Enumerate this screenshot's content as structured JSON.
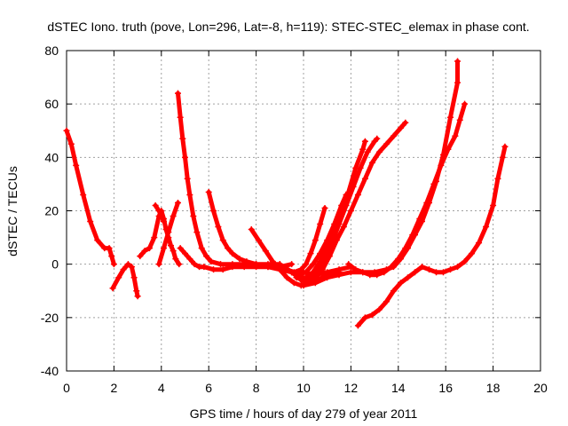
{
  "chart_data": {
    "type": "scatter",
    "title": "dSTEC Iono. truth (pove, Lon=296, Lat=-8, h=119): STEC-STEC_elemax in phase cont.",
    "xlabel": "GPS time / hours of day 279 of year 2011",
    "ylabel": "dSTEC  / TECUs",
    "xlim": [
      0,
      20
    ],
    "ylim": [
      -40,
      80
    ],
    "xticks": [
      "0",
      "2",
      "4",
      "6",
      "8",
      "10",
      "12",
      "14",
      "16",
      "18",
      "20"
    ],
    "yticks": [
      "-40",
      "-20",
      "0",
      "20",
      "40",
      "60",
      "80"
    ],
    "grid": true,
    "marker": "+",
    "color": "#ff0000",
    "series": [
      {
        "points": [
          [
            0.0,
            50
          ],
          [
            0.2,
            45
          ],
          [
            0.4,
            37
          ],
          [
            0.7,
            26
          ],
          [
            1.0,
            16
          ],
          [
            1.3,
            9
          ],
          [
            1.6,
            6
          ],
          [
            1.8,
            6
          ],
          [
            1.9,
            3
          ],
          [
            2.0,
            0
          ]
        ]
      },
      {
        "points": [
          [
            1.95,
            -9
          ],
          [
            2.2,
            -5
          ],
          [
            2.4,
            -2
          ],
          [
            2.6,
            0
          ],
          [
            2.75,
            -1
          ],
          [
            2.85,
            -5
          ],
          [
            2.95,
            -10
          ],
          [
            3.0,
            -12
          ]
        ]
      },
      {
        "points": [
          [
            3.1,
            3
          ],
          [
            3.3,
            5
          ],
          [
            3.5,
            6
          ],
          [
            3.7,
            10
          ],
          [
            3.9,
            18
          ],
          [
            4.0,
            20
          ],
          [
            4.1,
            17
          ],
          [
            4.2,
            13
          ],
          [
            4.3,
            10
          ],
          [
            4.4,
            7
          ],
          [
            4.5,
            5
          ],
          [
            4.6,
            2
          ],
          [
            4.75,
            0
          ]
        ]
      },
      {
        "points": [
          [
            3.9,
            0
          ],
          [
            4.1,
            6
          ],
          [
            4.3,
            12
          ],
          [
            4.5,
            18
          ],
          [
            4.7,
            23
          ]
        ]
      },
      {
        "points": [
          [
            3.75,
            22
          ],
          [
            3.9,
            20
          ],
          [
            4.0,
            18
          ],
          [
            4.1,
            16
          ]
        ]
      },
      {
        "points": [
          [
            4.7,
            64
          ],
          [
            4.8,
            55
          ],
          [
            4.9,
            47
          ],
          [
            5.0,
            40
          ],
          [
            5.1,
            32
          ],
          [
            5.2,
            26
          ],
          [
            5.35,
            18
          ],
          [
            5.5,
            12
          ],
          [
            5.7,
            6
          ],
          [
            5.9,
            3
          ],
          [
            6.1,
            1
          ],
          [
            6.5,
            0
          ],
          [
            7.0,
            0
          ],
          [
            7.5,
            0
          ],
          [
            8.0,
            0
          ],
          [
            8.5,
            0
          ],
          [
            9.0,
            0
          ]
        ]
      },
      {
        "points": [
          [
            4.8,
            6
          ],
          [
            5.0,
            4
          ],
          [
            5.2,
            2
          ],
          [
            5.4,
            0
          ],
          [
            5.6,
            -1
          ],
          [
            5.8,
            -1
          ],
          [
            6.2,
            -2
          ],
          [
            6.6,
            -2
          ],
          [
            7.0,
            -1
          ],
          [
            7.5,
            -1
          ],
          [
            8.0,
            -1
          ],
          [
            8.5,
            -1
          ],
          [
            9.0,
            -1
          ],
          [
            9.5,
            0
          ]
        ]
      },
      {
        "points": [
          [
            6.0,
            27
          ],
          [
            6.2,
            20
          ],
          [
            6.4,
            14
          ],
          [
            6.6,
            9
          ],
          [
            6.8,
            6
          ],
          [
            7.0,
            4
          ],
          [
            7.3,
            2
          ],
          [
            7.6,
            1
          ],
          [
            8.0,
            0
          ],
          [
            8.5,
            -1
          ],
          [
            9.0,
            -2
          ],
          [
            9.5,
            -3
          ],
          [
            10.0,
            -3
          ],
          [
            10.5,
            -4
          ],
          [
            11.0,
            -3
          ],
          [
            11.5,
            -2
          ],
          [
            12.0,
            -1
          ]
        ]
      },
      {
        "points": [
          [
            7.8,
            13
          ],
          [
            8.1,
            9
          ],
          [
            8.4,
            5
          ],
          [
            8.7,
            1
          ],
          [
            9.0,
            -2
          ],
          [
            9.3,
            -5
          ],
          [
            9.6,
            -7
          ],
          [
            9.9,
            -8
          ],
          [
            10.2,
            -7
          ],
          [
            10.5,
            -6
          ],
          [
            10.8,
            -5
          ],
          [
            11.1,
            -4
          ],
          [
            11.5,
            -3
          ]
        ]
      },
      {
        "points": [
          [
            9.0,
            0
          ],
          [
            9.3,
            -2
          ],
          [
            9.6,
            -3
          ],
          [
            9.9,
            -2
          ],
          [
            10.1,
            0
          ],
          [
            10.3,
            4
          ],
          [
            10.5,
            9
          ],
          [
            10.7,
            15
          ],
          [
            10.9,
            21
          ]
        ]
      },
      {
        "points": [
          [
            9.2,
            -1
          ],
          [
            9.5,
            -3
          ],
          [
            9.8,
            -4
          ],
          [
            10.1,
            -3
          ],
          [
            10.4,
            0
          ],
          [
            10.7,
            4
          ],
          [
            11.0,
            9
          ],
          [
            11.3,
            15
          ],
          [
            11.6,
            22
          ],
          [
            11.8,
            26
          ]
        ]
      },
      {
        "points": [
          [
            9.5,
            -3
          ],
          [
            9.8,
            -5
          ],
          [
            10.1,
            -5
          ],
          [
            10.4,
            -3
          ],
          [
            10.7,
            1
          ],
          [
            11.0,
            6
          ],
          [
            11.3,
            12
          ],
          [
            11.6,
            19
          ],
          [
            11.9,
            27
          ],
          [
            12.2,
            36
          ],
          [
            12.5,
            43
          ],
          [
            12.6,
            46
          ]
        ]
      },
      {
        "points": [
          [
            9.7,
            -5
          ],
          [
            10.0,
            -6
          ],
          [
            10.3,
            -5
          ],
          [
            10.6,
            -2
          ],
          [
            10.9,
            2
          ],
          [
            11.2,
            8
          ],
          [
            11.5,
            15
          ],
          [
            11.8,
            22
          ],
          [
            12.1,
            29
          ],
          [
            12.4,
            36
          ],
          [
            12.7,
            42
          ],
          [
            13.0,
            46
          ],
          [
            13.1,
            47
          ]
        ]
      },
      {
        "points": [
          [
            9.9,
            -6
          ],
          [
            10.2,
            -7
          ],
          [
            10.5,
            -5
          ],
          [
            10.8,
            -2
          ],
          [
            11.1,
            3
          ],
          [
            11.4,
            9
          ],
          [
            11.7,
            14
          ],
          [
            12.0,
            20
          ],
          [
            12.3,
            26
          ],
          [
            12.6,
            32
          ],
          [
            12.9,
            38
          ],
          [
            13.2,
            42
          ],
          [
            13.5,
            45
          ],
          [
            13.8,
            48
          ],
          [
            14.1,
            51
          ],
          [
            14.3,
            53
          ]
        ]
      },
      {
        "points": [
          [
            10.0,
            -8
          ],
          [
            10.5,
            -7
          ],
          [
            11.0,
            -5
          ],
          [
            11.5,
            -4
          ],
          [
            12.0,
            -3
          ],
          [
            12.5,
            -3
          ],
          [
            13.0,
            -3
          ],
          [
            13.5,
            -2
          ],
          [
            13.8,
            -1
          ],
          [
            14.1,
            2
          ],
          [
            14.4,
            6
          ],
          [
            14.7,
            11
          ],
          [
            15.0,
            16
          ],
          [
            15.3,
            23
          ],
          [
            15.6,
            31
          ],
          [
            15.9,
            41
          ],
          [
            16.2,
            55
          ],
          [
            16.5,
            68
          ],
          [
            16.5,
            76
          ]
        ]
      },
      {
        "points": [
          [
            11.9,
            0
          ],
          [
            12.2,
            -2
          ],
          [
            12.5,
            -3
          ],
          [
            12.8,
            -4
          ],
          [
            13.1,
            -4
          ],
          [
            13.4,
            -3
          ],
          [
            13.7,
            -1
          ],
          [
            14.0,
            2
          ],
          [
            14.3,
            6
          ],
          [
            14.6,
            11
          ],
          [
            14.9,
            17
          ],
          [
            15.2,
            23
          ],
          [
            15.5,
            30
          ],
          [
            15.8,
            37
          ],
          [
            16.1,
            43
          ],
          [
            16.4,
            48
          ],
          [
            16.6,
            54
          ],
          [
            16.8,
            60
          ]
        ]
      },
      {
        "points": [
          [
            12.3,
            -23
          ],
          [
            12.6,
            -20
          ],
          [
            12.9,
            -19
          ],
          [
            13.2,
            -17
          ],
          [
            13.5,
            -14
          ],
          [
            13.8,
            -10
          ],
          [
            14.1,
            -7
          ],
          [
            14.4,
            -5
          ],
          [
            14.7,
            -3
          ],
          [
            15.0,
            -1
          ],
          [
            15.3,
            -2
          ],
          [
            15.6,
            -3
          ],
          [
            15.9,
            -3
          ],
          [
            16.2,
            -2
          ],
          [
            16.5,
            -1
          ],
          [
            16.8,
            1
          ],
          [
            17.1,
            4
          ],
          [
            17.4,
            8
          ],
          [
            17.7,
            14
          ],
          [
            18.0,
            22
          ],
          [
            18.2,
            32
          ],
          [
            18.4,
            40
          ],
          [
            18.5,
            44
          ]
        ]
      }
    ]
  }
}
